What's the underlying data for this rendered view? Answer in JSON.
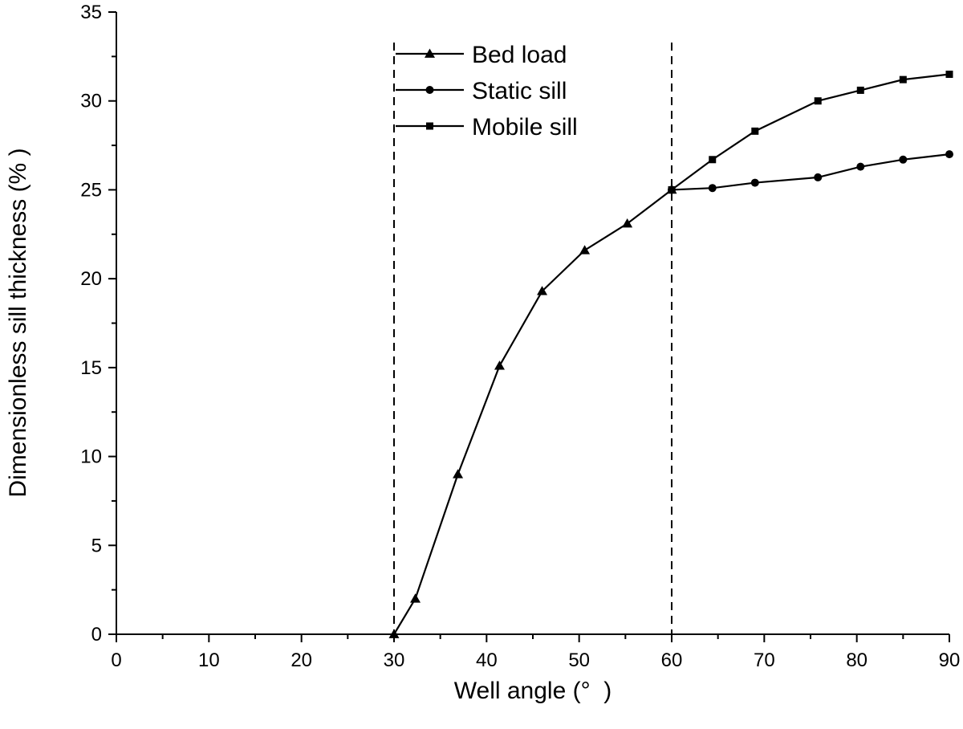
{
  "chart_data": {
    "type": "line",
    "title": "",
    "xlabel": "Well angle (°  )",
    "ylabel": "Dimensionless sill thickness (% )",
    "xlim": [
      0,
      90
    ],
    "ylim": [
      0,
      35
    ],
    "xticks": [
      0,
      10,
      20,
      30,
      40,
      50,
      60,
      70,
      80,
      90
    ],
    "yticks": [
      0,
      5,
      10,
      15,
      20,
      25,
      30,
      35
    ],
    "xtick_labels": [
      "0",
      "10",
      "20",
      "30",
      "40",
      "50",
      "60",
      "70",
      "80",
      "90"
    ],
    "ytick_labels": [
      "0",
      "5",
      "10",
      "15",
      "20",
      "25",
      "30",
      "35"
    ],
    "grid": false,
    "legend_position": "top-center",
    "reference_lines": [
      {
        "axis": "x",
        "value": 30,
        "style": "dashed"
      },
      {
        "axis": "x",
        "value": 60,
        "style": "dashed"
      }
    ],
    "series": [
      {
        "name": "Bed load",
        "marker": "triangle",
        "x": [
          30,
          32.3,
          36.9,
          41.4,
          46,
          50.6,
          55.2,
          60
        ],
        "y": [
          0,
          2.0,
          9.0,
          15.1,
          19.3,
          21.6,
          23.1,
          25.0
        ]
      },
      {
        "name": "Static sill",
        "marker": "circle",
        "x": [
          60,
          64.4,
          69,
          75.8,
          80.4,
          85,
          90
        ],
        "y": [
          25.0,
          25.1,
          25.4,
          25.7,
          26.3,
          26.7,
          27.0
        ]
      },
      {
        "name": "Mobile sill",
        "marker": "square",
        "x": [
          60,
          64.4,
          69,
          75.8,
          80.4,
          85,
          90
        ],
        "y": [
          25.0,
          26.7,
          28.3,
          30.0,
          30.6,
          31.2,
          31.5
        ]
      }
    ]
  },
  "colors": {
    "line": "#000000",
    "background": "#ffffff"
  }
}
